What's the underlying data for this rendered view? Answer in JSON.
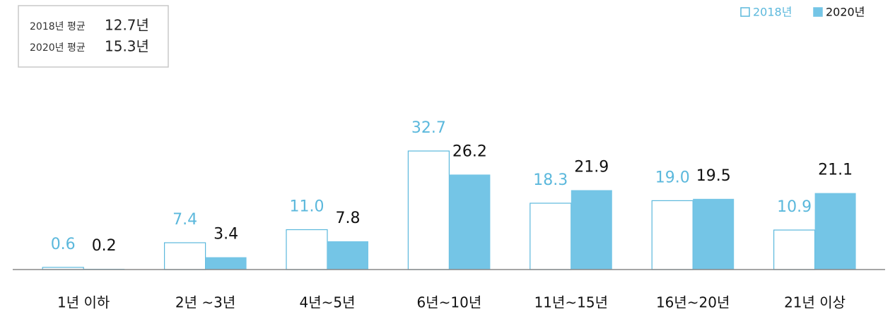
{
  "chart_data": {
    "type": "bar",
    "annotations": [
      {
        "label": "2018년 평균",
        "value": "12.7년"
      },
      {
        "label": "2020년 평균",
        "value": "15.3년"
      }
    ],
    "categories": [
      "1년 이하",
      "2년 ~3년",
      "4년~5년",
      "6년~10년",
      "11년~15년",
      "16년~20년",
      "21년 이상"
    ],
    "series": [
      {
        "name": "2018년",
        "color": "#5bb8dc",
        "values": [
          0.6,
          7.4,
          11.0,
          32.7,
          18.3,
          19.0,
          10.9
        ],
        "value_labels": [
          "0.6",
          "7.4",
          "11.0",
          "32.7",
          "18.3",
          "19.0",
          "10.9"
        ]
      },
      {
        "name": "2020년",
        "color": "#74c5e6",
        "values": [
          0.2,
          3.4,
          7.8,
          26.2,
          21.9,
          19.5,
          21.1
        ],
        "value_labels": [
          "0.2",
          "3.4",
          "7.8",
          "26.2",
          "21.9",
          "19.5",
          "21.1"
        ]
      }
    ]
  }
}
